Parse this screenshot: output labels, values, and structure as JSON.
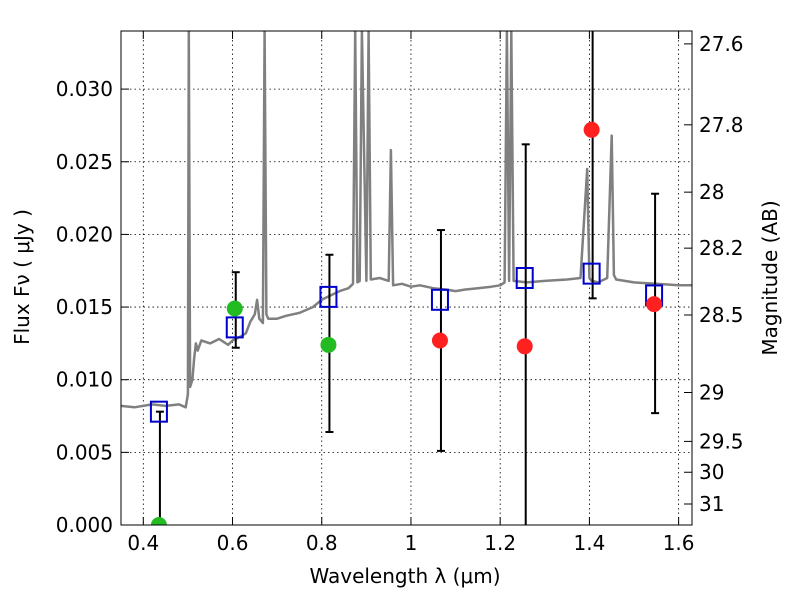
{
  "chart_data": {
    "type": "scatter",
    "title": "",
    "xlabel": "Wavelength  λ (μm)",
    "ylabel": "Flux  Fν  ( μJy )",
    "ylabel_right": "Magnitude (AB)",
    "xlim": [
      0.35,
      1.63
    ],
    "ylim": [
      0.0,
      0.034
    ],
    "grid": true,
    "x_ticks": [
      "0.4",
      "0.6",
      "0.8",
      "1",
      "1.2",
      "1.4",
      "1.6"
    ],
    "x_tick_values": [
      0.4,
      0.6,
      0.8,
      1.0,
      1.2,
      1.4,
      1.6
    ],
    "y_ticks": [
      "0.000",
      "0.005",
      "0.010",
      "0.015",
      "0.020",
      "0.025",
      "0.030"
    ],
    "y_tick_values": [
      0.0,
      0.005,
      0.01,
      0.015,
      0.02,
      0.025,
      0.03
    ],
    "right_ticks": [
      "27.6",
      "27.8",
      "28",
      "28.2",
      "28.5",
      "29",
      "29.5",
      "30",
      "31"
    ],
    "right_tick_values": [
      27.6,
      27.8,
      28.0,
      28.2,
      28.5,
      29.0,
      29.5,
      30.0,
      31.0
    ],
    "colors": {
      "spectrum": "#808080",
      "model": "#0000cc",
      "observed_red": "#ff2020",
      "observed_green": "#22bb22",
      "errorbar": "#000000"
    },
    "series": [
      {
        "kind": "line",
        "color": "#808080",
        "x": [
          0.35,
          0.38,
          0.42,
          0.45,
          0.48,
          0.495,
          0.5,
          0.502,
          0.505,
          0.51,
          0.514,
          0.518,
          0.522,
          0.53,
          0.55,
          0.57,
          0.59,
          0.6,
          0.62,
          0.63,
          0.64,
          0.65,
          0.655,
          0.66,
          0.668,
          0.672,
          0.676,
          0.68,
          0.7,
          0.72,
          0.75,
          0.78,
          0.8,
          0.82,
          0.84,
          0.86,
          0.87,
          0.875,
          0.88,
          0.885,
          0.89,
          0.9,
          0.905,
          0.91,
          0.93,
          0.95,
          0.955,
          0.96,
          0.98,
          1.0,
          1.02,
          1.05,
          1.08,
          1.1,
          1.12,
          1.15,
          1.18,
          1.2,
          1.21,
          1.215,
          1.22,
          1.225,
          1.23,
          1.26,
          1.3,
          1.35,
          1.38,
          1.395,
          1.4,
          1.405,
          1.42,
          1.44,
          1.45,
          1.455,
          1.46,
          1.5,
          1.55,
          1.6,
          1.63
        ],
        "y": [
          0.0082,
          0.0081,
          0.0083,
          0.0082,
          0.0083,
          0.0081,
          0.009,
          0.034,
          0.0095,
          0.01,
          0.0115,
          0.0125,
          0.012,
          0.0127,
          0.0125,
          0.0128,
          0.0124,
          0.0127,
          0.013,
          0.0132,
          0.014,
          0.0145,
          0.0155,
          0.0142,
          0.0139,
          0.034,
          0.0145,
          0.0142,
          0.0142,
          0.0144,
          0.0146,
          0.015,
          0.0155,
          0.0158,
          0.0161,
          0.0163,
          0.0166,
          0.034,
          0.0167,
          0.0168,
          0.034,
          0.0168,
          0.034,
          0.0169,
          0.017,
          0.0168,
          0.0258,
          0.0165,
          0.0166,
          0.0164,
          0.0165,
          0.0163,
          0.0162,
          0.0161,
          0.0162,
          0.0163,
          0.0164,
          0.0165,
          0.0167,
          0.034,
          0.0168,
          0.034,
          0.0168,
          0.0167,
          0.0168,
          0.0169,
          0.017,
          0.0245,
          0.017,
          0.0168,
          0.0167,
          0.017,
          0.0268,
          0.0172,
          0.0169,
          0.0167,
          0.0166,
          0.0165,
          0.0165
        ]
      },
      {
        "kind": "model_points",
        "color": "#0000cc",
        "x": [
          0.435,
          0.605,
          0.815,
          1.065,
          1.255,
          1.405,
          1.545
        ],
        "y": [
          0.0078,
          0.0136,
          0.0157,
          0.0155,
          0.017,
          0.0173,
          0.0158
        ]
      },
      {
        "kind": "observed_points",
        "x": [
          0.435,
          0.605,
          0.815,
          1.065,
          1.255,
          1.405,
          1.545
        ],
        "y": [
          0.0,
          0.0149,
          0.0124,
          0.0127,
          0.0123,
          0.0272,
          0.0152
        ],
        "colors": [
          "#22bb22",
          "#22bb22",
          "#22bb22",
          "#ff2020",
          "#ff2020",
          "#ff2020",
          "#ff2020"
        ],
        "err_low": [
          0.0,
          0.0122,
          0.0064,
          0.0051,
          0.0,
          0.0156,
          0.0077
        ],
        "err_high": [
          0.0078,
          0.0174,
          0.0186,
          0.0203,
          0.0262,
          0.034,
          0.0228
        ]
      }
    ]
  }
}
